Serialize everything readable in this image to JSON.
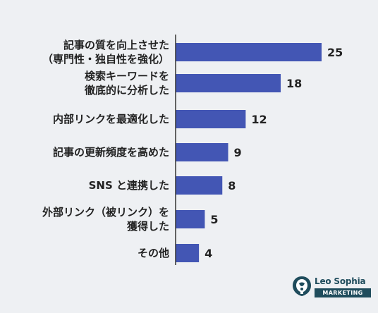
{
  "chart_data": {
    "type": "bar",
    "orientation": "horizontal",
    "categories": [
      [
        "記事の質を向上させた",
        "（専門性・独自性を強化）"
      ],
      [
        "検索キーワードを",
        "徹底的に分析した"
      ],
      [
        "内部リンクを最適化した"
      ],
      [
        "記事の更新頻度を高めた"
      ],
      [
        "SNS と連携した"
      ],
      [
        "外部リンク（被リンク）を",
        "獲得した"
      ],
      [
        "その他"
      ]
    ],
    "values": [
      25,
      18,
      12,
      9,
      8,
      5,
      4
    ],
    "xlim": [
      0,
      25
    ],
    "bar_color": "#4356b4",
    "grid": false,
    "data_labels": true
  },
  "logo": {
    "name": "Leo Sophia",
    "sub": "MARKETING",
    "color": "#1f4c5c"
  }
}
